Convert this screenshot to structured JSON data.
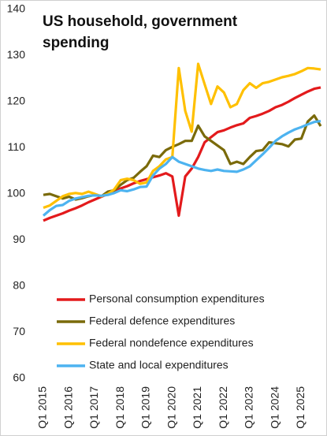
{
  "chart_data": {
    "type": "line",
    "title": "US household, government spending",
    "categories": [
      "Q1 2015",
      null,
      null,
      null,
      "Q1 2016",
      null,
      null,
      null,
      "Q1 2017",
      null,
      null,
      null,
      "Q1 2018",
      null,
      null,
      null,
      "Q1 2019",
      null,
      null,
      null,
      "Q1 2020",
      null,
      null,
      null,
      "Q1 2021",
      null,
      null,
      null,
      "Q1 2022",
      null,
      null,
      null,
      "Q1 2023",
      null,
      null,
      null,
      "Q1 2024",
      null,
      null,
      null,
      "Q1 2025",
      null,
      null,
      null
    ],
    "series": [
      {
        "name": "Personal consumption expenditures",
        "color": "#e31a1c",
        "values": [
          94.2,
          94.8,
          95.3,
          95.8,
          96.4,
          96.9,
          97.5,
          98.2,
          98.8,
          99.4,
          100.0,
          100.6,
          101.2,
          101.7,
          102.3,
          102.8,
          103.2,
          103.6,
          104.0,
          104.5,
          103.8,
          95.3,
          103.8,
          105.5,
          108.0,
          111.2,
          112.3,
          113.4,
          113.8,
          114.4,
          114.9,
          115.3,
          116.5,
          116.9,
          117.4,
          118.0,
          118.8,
          119.3,
          120.0,
          120.8,
          121.5,
          122.2,
          122.8,
          123.1
        ]
      },
      {
        "name": "Federal defence expenditures",
        "color": "#7a6a0a",
        "values": [
          99.8,
          100.0,
          99.5,
          99.0,
          99.4,
          98.8,
          99.1,
          99.5,
          99.8,
          99.5,
          100.5,
          100.8,
          102.0,
          103.0,
          103.5,
          104.8,
          106.0,
          108.3,
          108.0,
          109.5,
          110.2,
          110.8,
          111.5,
          111.5,
          114.8,
          112.5,
          111.5,
          110.5,
          109.5,
          106.5,
          107.0,
          106.5,
          108.0,
          109.3,
          109.5,
          111.2,
          111.0,
          110.8,
          110.3,
          111.8,
          112.0,
          115.7,
          117.0,
          114.7
        ]
      },
      {
        "name": "Federal nondefence expenditures",
        "color": "#ffc000",
        "values": [
          97.0,
          97.5,
          98.5,
          99.5,
          100.0,
          100.2,
          100.0,
          100.5,
          100.0,
          99.5,
          100.0,
          101.0,
          103.0,
          103.3,
          103.0,
          102.2,
          102.5,
          105.0,
          106.0,
          107.5,
          108.0,
          127.3,
          118.0,
          113.5,
          128.2,
          123.8,
          119.5,
          123.3,
          122.0,
          118.8,
          119.5,
          122.5,
          124.0,
          123.0,
          124.0,
          124.3,
          124.8,
          125.3,
          125.6,
          126.0,
          126.6,
          127.3,
          127.2,
          127.0
        ]
      },
      {
        "name": "State and local expenditures",
        "color": "#4db3f0",
        "values": [
          95.3,
          96.5,
          97.4,
          97.6,
          98.5,
          99.0,
          99.3,
          99.6,
          99.7,
          99.6,
          99.8,
          100.2,
          100.8,
          100.6,
          101.0,
          101.5,
          101.6,
          104.0,
          105.5,
          106.5,
          108.0,
          107.0,
          106.5,
          106.0,
          105.5,
          105.2,
          105.0,
          105.3,
          105.0,
          104.9,
          104.8,
          105.3,
          106.0,
          107.3,
          108.6,
          110.0,
          111.5,
          112.5,
          113.3,
          114.0,
          114.5,
          115.1,
          115.6,
          115.8
        ]
      }
    ],
    "ylim": [
      60,
      140
    ],
    "yticks": [
      60,
      70,
      80,
      90,
      100,
      110,
      120,
      130,
      140
    ]
  }
}
